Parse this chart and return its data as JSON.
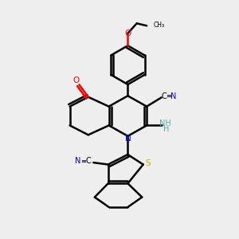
{
  "bg_color": "#eeeeee",
  "C": "#000000",
  "N": "#0000ff",
  "O": "#ff0000",
  "S": "#ccaa00",
  "NH": "#55aaaa",
  "bond_color": "#000000",
  "lw": 1.8
}
